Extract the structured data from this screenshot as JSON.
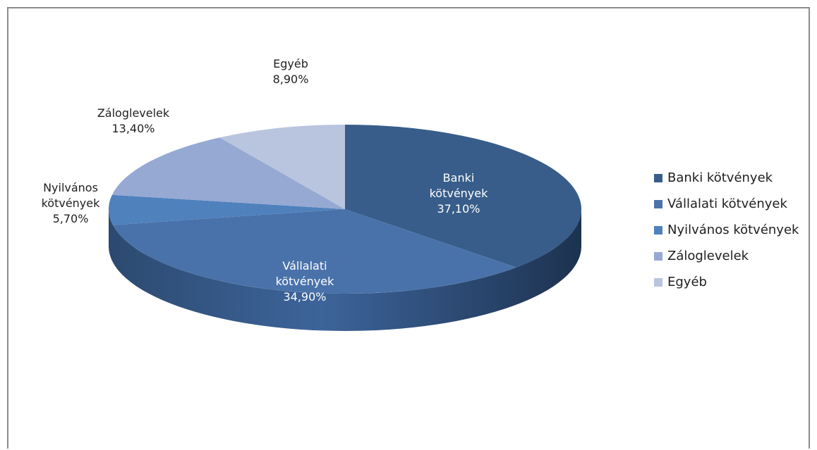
{
  "chart_data": {
    "type": "pie",
    "style": "3d",
    "categories": [
      "Banki kötvények",
      "Vállalati kötvények",
      "Nyilvános kötvények",
      "Záloglevelek",
      "Egyéb"
    ],
    "values": [
      37.1,
      34.9,
      5.7,
      13.4,
      8.9
    ],
    "value_labels": [
      "37,10%",
      "34,90%",
      "5,70%",
      "13,40%",
      "8,90%"
    ],
    "label_lines": [
      [
        "Banki",
        "kötvények",
        "37,10%"
      ],
      [
        "Vállalati",
        "kötvények",
        "34,90%"
      ],
      [
        "Nyilvános",
        "kötvények",
        "5,70%"
      ],
      [
        "Záloglevelek",
        "13,40%"
      ],
      [
        "Egyéb",
        "8,90%"
      ]
    ],
    "colors": [
      "#385d8a",
      "#4a72aa",
      "#4f81bd",
      "#95a9d3",
      "#b9c5de"
    ],
    "legend_position": "right"
  }
}
